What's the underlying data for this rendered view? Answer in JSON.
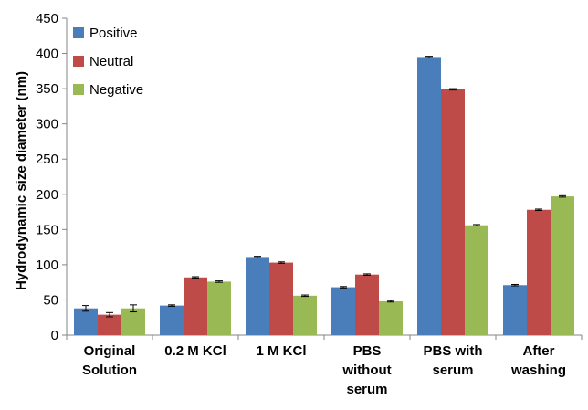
{
  "chart_data": {
    "type": "bar",
    "title": "",
    "xlabel": "",
    "ylabel": "Hydrodynamic size diameter (nm)",
    "ylim": [
      0,
      450
    ],
    "yticks": [
      0,
      50,
      100,
      150,
      200,
      250,
      300,
      350,
      400,
      450
    ],
    "grid": false,
    "legend_position": "top-left",
    "categories": [
      [
        "Original",
        "Solution"
      ],
      [
        "0.2 M KCl"
      ],
      [
        "1 M KCl"
      ],
      [
        "PBS",
        "without",
        "serum"
      ],
      [
        "PBS with",
        "serum"
      ],
      [
        "After",
        "washing"
      ]
    ],
    "series": [
      {
        "name": "Positive",
        "color": "#4a7ebb",
        "values": [
          38,
          42,
          111,
          68,
          395,
          71
        ],
        "errors": [
          4,
          1,
          1,
          1,
          1,
          1
        ]
      },
      {
        "name": "Neutral",
        "color": "#be4b48",
        "values": [
          29,
          82,
          103,
          86,
          349,
          178
        ],
        "errors": [
          3,
          1,
          1,
          1,
          1,
          1
        ]
      },
      {
        "name": "Negative",
        "color": "#98b954",
        "values": [
          38,
          76,
          56,
          48,
          156,
          197
        ],
        "errors": [
          5,
          1,
          1,
          1,
          1,
          1
        ]
      }
    ]
  }
}
